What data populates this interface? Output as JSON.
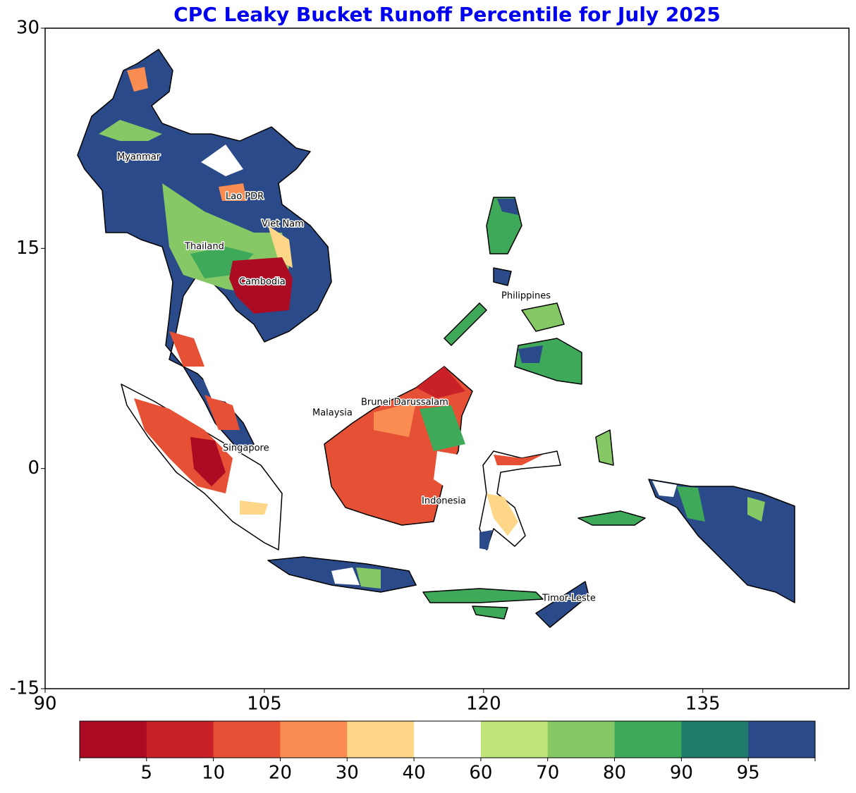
{
  "title": "CPC Leaky Bucket Runoff Percentile for July 2025",
  "map": {
    "xlim": [
      90,
      145
    ],
    "ylim": [
      -15,
      30
    ],
    "xticks": [
      90,
      105,
      120,
      135
    ],
    "yticks": [
      -15,
      0,
      15,
      30
    ],
    "labels": [
      "Myanmar",
      "Lao PDR",
      "Viet Nam",
      "Thailand",
      "Cambodia",
      "Philippines",
      "Malaysia",
      "Brunei Darussalam",
      "Singapore",
      "Indonesia",
      "Timor-Leste"
    ]
  },
  "colorbar": {
    "levels": [
      5,
      10,
      20,
      30,
      40,
      60,
      70,
      80,
      90,
      95
    ],
    "colors": [
      "#ab0b23",
      "#c92127",
      "#e65035",
      "#f88c51",
      "#fed687",
      "#ffffff",
      "#bfe47a",
      "#86c865",
      "#3fa95a",
      "#1f7b6a",
      "#2b4a89"
    ]
  }
}
